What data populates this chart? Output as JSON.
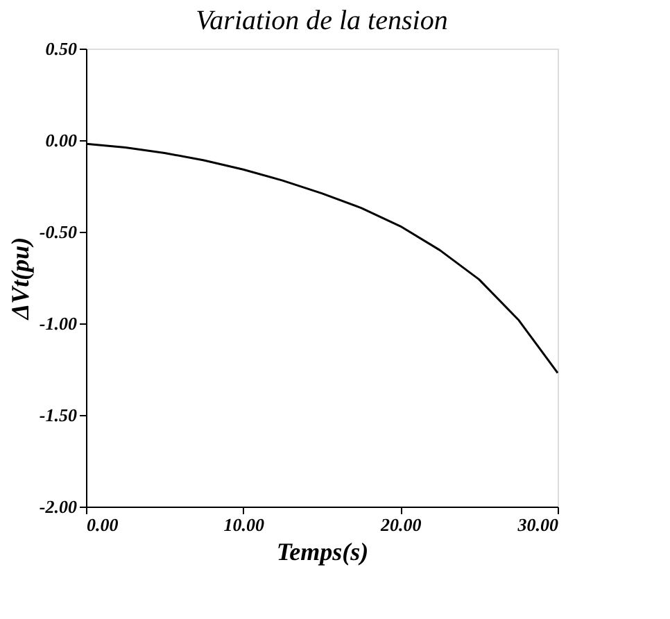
{
  "chart_data": {
    "type": "line",
    "title": "Variation de la tension",
    "xlabel": "Temps(s)",
    "ylabel": "ΔVt(pu)",
    "x": [
      0,
      2.5,
      5,
      7.5,
      10,
      12.5,
      15,
      17.5,
      20,
      22.5,
      25,
      27.5,
      30
    ],
    "series": [
      {
        "color": "#000000",
        "values": [
          -0.02,
          -0.04,
          -0.07,
          -0.11,
          -0.16,
          -0.22,
          -0.29,
          -0.37,
          -0.47,
          -0.6,
          -0.76,
          -0.98,
          -1.27
        ]
      }
    ],
    "xlim": [
      0,
      30
    ],
    "xticks": [
      {
        "value": 0,
        "label": "0.00"
      },
      {
        "value": 10,
        "label": "10.00"
      },
      {
        "value": 20,
        "label": "20.00"
      },
      {
        "value": 30,
        "label": "30.00"
      }
    ],
    "ylim": [
      -2,
      0.5
    ],
    "yticks": [
      {
        "value": -2,
        "label": "-2.00"
      },
      {
        "value": -1.5,
        "label": "-1.50"
      },
      {
        "value": -1,
        "label": "-1.00"
      },
      {
        "value": -0.5,
        "label": "-0.50"
      },
      {
        "value": 0,
        "label": "0.00"
      },
      {
        "value": 0.5,
        "label": "0.50"
      }
    ],
    "grid": false,
    "marker": "none",
    "line_style": "solid"
  }
}
